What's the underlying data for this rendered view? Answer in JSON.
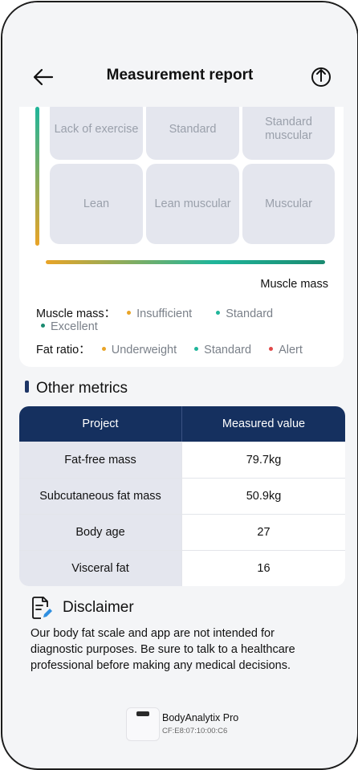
{
  "header": {
    "title": "Measurement report",
    "back_icon": "arrow-left-icon",
    "share_icon": "share-icon"
  },
  "grid": {
    "row1": [
      "Lack of exercise",
      "Standard",
      "Standard muscular"
    ],
    "row2": [
      "Lean",
      "Lean muscular",
      "Muscular"
    ],
    "x_axis_label": "Muscle mass"
  },
  "legend": {
    "muscle_label": "Muscle mass：",
    "muscle_items": [
      {
        "label": "Insufficient",
        "color": "#e9a427"
      },
      {
        "label": "Standard",
        "color": "#1fb59a"
      },
      {
        "label": "Excellent",
        "color": "#1a8a70"
      }
    ],
    "fat_label": "Fat ratio：",
    "fat_items": [
      {
        "label": "Underweight",
        "color": "#e9a427"
      },
      {
        "label": "Standard",
        "color": "#1fb59a"
      },
      {
        "label": "Alert",
        "color": "#e04848"
      }
    ]
  },
  "other_metrics": {
    "title": "Other metrics",
    "columns": [
      "Project",
      "Measured value"
    ],
    "rows": [
      {
        "project": "Fat-free mass",
        "value": "79.7kg"
      },
      {
        "project": "Subcutaneous fat mass",
        "value": "50.9kg"
      },
      {
        "project": "Body age",
        "value": "27"
      },
      {
        "project": "Visceral fat",
        "value": "16"
      }
    ]
  },
  "disclaimer": {
    "title": "Disclaimer",
    "text": "Our body fat scale and app are not intended for diagnostic purposes. Be sure to talk to a healthcare professional before making any medical decisions."
  },
  "device": {
    "name": "BodyAnalytix Pro",
    "mac": "CF:E8:07:10:00:C6"
  }
}
